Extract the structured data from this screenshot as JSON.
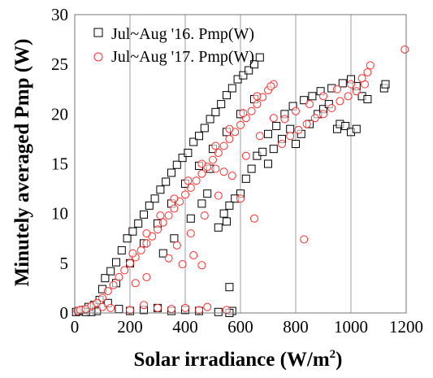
{
  "chart_data": {
    "type": "scatter",
    "xlabel": "Solar irradiance (W/m",
    "xlabel_sup": "2",
    "xlabel_end": ")",
    "ylabel": "Minutely averaged Pmp (W)",
    "xlim": [
      0,
      1200
    ],
    "ylim": [
      0,
      30
    ],
    "x_ticks": [
      0,
      200,
      400,
      600,
      800,
      1000,
      1200
    ],
    "y_ticks": [
      0,
      5,
      10,
      15,
      20,
      25,
      30
    ],
    "grid": "vertical",
    "legend_position": "top-left",
    "series": [
      {
        "name": "Jul~Aug '16. Pmp(W)",
        "marker": "square",
        "color": "#000000",
        "points": [
          [
            5,
            0.1
          ],
          [
            15,
            0.2
          ],
          [
            30,
            0.3
          ],
          [
            50,
            0.6
          ],
          [
            70,
            0.8
          ],
          [
            90,
            1.3
          ],
          [
            100,
            2.4
          ],
          [
            110,
            3.5
          ],
          [
            130,
            4.2
          ],
          [
            150,
            5.1
          ],
          [
            170,
            6.3
          ],
          [
            190,
            7.5
          ],
          [
            210,
            8.2
          ],
          [
            230,
            9.0
          ],
          [
            250,
            9.9
          ],
          [
            270,
            10.8
          ],
          [
            290,
            11.5
          ],
          [
            310,
            12.4
          ],
          [
            330,
            13.2
          ],
          [
            350,
            14.1
          ],
          [
            370,
            14.9
          ],
          [
            390,
            15.6
          ],
          [
            410,
            16.1
          ],
          [
            430,
            17.2
          ],
          [
            450,
            17.8
          ],
          [
            470,
            18.6
          ],
          [
            490,
            19.5
          ],
          [
            510,
            20.2
          ],
          [
            530,
            21.0
          ],
          [
            550,
            21.9
          ],
          [
            570,
            22.6
          ],
          [
            590,
            23.5
          ],
          [
            610,
            23.9
          ],
          [
            630,
            24.4
          ],
          [
            650,
            25.0
          ],
          [
            670,
            25.7
          ],
          [
            150,
            3.0
          ],
          [
            200,
            5.0
          ],
          [
            250,
            7.0
          ],
          [
            300,
            9.0
          ],
          [
            350,
            11.0
          ],
          [
            400,
            13.0
          ],
          [
            450,
            14.8
          ],
          [
            500,
            16.5
          ],
          [
            550,
            18.2
          ],
          [
            600,
            20.0
          ],
          [
            650,
            21.5
          ],
          [
            700,
            15.0
          ],
          [
            720,
            16.5
          ],
          [
            750,
            17.5
          ],
          [
            780,
            18.5
          ],
          [
            800,
            17.0
          ],
          [
            820,
            18.0
          ],
          [
            850,
            19.0
          ],
          [
            880,
            20.0
          ],
          [
            900,
            20.5
          ],
          [
            920,
            21.0
          ],
          [
            950,
            18.5
          ],
          [
            960,
            19.0
          ],
          [
            980,
            18.8
          ],
          [
            1000,
            18.2
          ],
          [
            1020,
            18.5
          ],
          [
            700,
            18.0
          ],
          [
            730,
            18.8
          ],
          [
            760,
            20.0
          ],
          [
            790,
            20.8
          ],
          [
            830,
            21.4
          ],
          [
            860,
            21.8
          ],
          [
            890,
            22.3
          ],
          [
            930,
            22.6
          ],
          [
            970,
            23.1
          ],
          [
            1000,
            23.5
          ],
          [
            1020,
            22.8
          ],
          [
            1040,
            21.8
          ],
          [
            1060,
            21.5
          ],
          [
            1120,
            22.6
          ],
          [
            1125,
            23.0
          ],
          [
            620,
            13.5
          ],
          [
            640,
            14.5
          ],
          [
            660,
            15.8
          ],
          [
            680,
            16.2
          ],
          [
            600,
            12.0
          ],
          [
            580,
            11.5
          ],
          [
            560,
            10.8
          ],
          [
            540,
            10.0
          ],
          [
            490,
            14.5
          ],
          [
            520,
            8.6
          ],
          [
            550,
            9.2
          ],
          [
            560,
            2.6
          ],
          [
            570,
            0.2
          ],
          [
            560,
            0.0
          ],
          [
            520,
            0.1
          ],
          [
            450,
            0.2
          ],
          [
            400,
            0.3
          ],
          [
            350,
            0.2
          ],
          [
            300,
            0.5
          ],
          [
            250,
            0.3
          ],
          [
            200,
            0.2
          ],
          [
            160,
            0.4
          ],
          [
            120,
            1.0
          ],
          [
            80,
            0.2
          ],
          [
            60,
            0.1
          ],
          [
            40,
            0.1
          ],
          [
            320,
            6.0
          ],
          [
            360,
            7.5
          ],
          [
            420,
            9.5
          ],
          [
            460,
            11.0
          ],
          [
            480,
            12.0
          ]
        ]
      },
      {
        "name": "Jul~Aug '17. Pmp(W)",
        "marker": "circle",
        "color": "#ff2a2a",
        "points": [
          [
            10,
            0.2
          ],
          [
            20,
            0.3
          ],
          [
            40,
            0.4
          ],
          [
            60,
            0.7
          ],
          [
            80,
            1.0
          ],
          [
            100,
            1.5
          ],
          [
            120,
            2.2
          ],
          [
            140,
            2.8
          ],
          [
            160,
            3.6
          ],
          [
            180,
            4.3
          ],
          [
            200,
            5.0
          ],
          [
            220,
            5.6
          ],
          [
            240,
            6.3
          ],
          [
            260,
            7.0
          ],
          [
            280,
            7.7
          ],
          [
            300,
            8.4
          ],
          [
            320,
            9.1
          ],
          [
            340,
            9.8
          ],
          [
            360,
            10.5
          ],
          [
            380,
            11.2
          ],
          [
            400,
            11.9
          ],
          [
            420,
            12.6
          ],
          [
            440,
            13.3
          ],
          [
            460,
            14.0
          ],
          [
            480,
            14.7
          ],
          [
            500,
            15.4
          ],
          [
            520,
            16.1
          ],
          [
            540,
            16.8
          ],
          [
            560,
            17.5
          ],
          [
            580,
            18.2
          ],
          [
            600,
            18.9
          ],
          [
            620,
            19.6
          ],
          [
            640,
            20.3
          ],
          [
            660,
            21.0
          ],
          [
            680,
            21.7
          ],
          [
            700,
            22.4
          ],
          [
            720,
            23.0
          ],
          [
            210,
            6.0
          ],
          [
            260,
            8.0
          ],
          [
            310,
            9.8
          ],
          [
            360,
            11.5
          ],
          [
            410,
            13.3
          ],
          [
            460,
            15.0
          ],
          [
            510,
            16.8
          ],
          [
            560,
            18.5
          ],
          [
            610,
            20.1
          ],
          [
            660,
            21.8
          ],
          [
            710,
            22.8
          ],
          [
            750,
            17.0
          ],
          [
            780,
            17.8
          ],
          [
            810,
            18.4
          ],
          [
            840,
            19.0
          ],
          [
            870,
            19.6
          ],
          [
            900,
            20.0
          ],
          [
            930,
            20.6
          ],
          [
            960,
            21.3
          ],
          [
            990,
            21.8
          ],
          [
            1020,
            22.3
          ],
          [
            1050,
            23.0
          ],
          [
            760,
            19.5
          ],
          [
            800,
            20.3
          ],
          [
            850,
            21.0
          ],
          [
            900,
            21.8
          ],
          [
            950,
            22.5
          ],
          [
            1000,
            23.0
          ],
          [
            1040,
            23.6
          ],
          [
            1060,
            24.2
          ],
          [
            1070,
            24.9
          ],
          [
            1195,
            26.5
          ],
          [
            100,
            0.6
          ],
          [
            130,
            0.5
          ],
          [
            200,
            0.3
          ],
          [
            250,
            0.8
          ],
          [
            300,
            0.5
          ],
          [
            350,
            0.4
          ],
          [
            400,
            0.5
          ],
          [
            450,
            0.3
          ],
          [
            550,
            0.3
          ],
          [
            480,
            0.6
          ],
          [
            510,
            14.5
          ],
          [
            540,
            14.2
          ],
          [
            600,
            11.5
          ],
          [
            650,
            9.5
          ],
          [
            830,
            7.4
          ],
          [
            460,
            4.8
          ],
          [
            430,
            5.8
          ],
          [
            390,
            4.9
          ],
          [
            260,
            3.6
          ],
          [
            220,
            3.0
          ],
          [
            340,
            5.5
          ],
          [
            370,
            6.8
          ],
          [
            420,
            8.0
          ],
          [
            470,
            9.8
          ],
          [
            520,
            11.8
          ],
          [
            570,
            13.8
          ],
          [
            620,
            15.8
          ],
          [
            670,
            17.8
          ],
          [
            720,
            19.6
          ]
        ]
      }
    ]
  }
}
